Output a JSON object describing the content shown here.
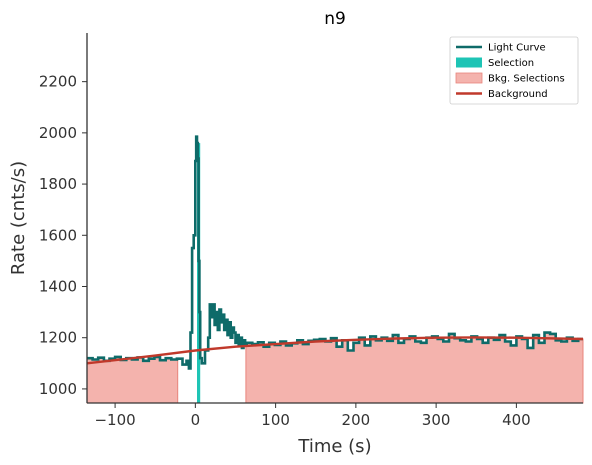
{
  "chart_data": {
    "type": "line",
    "title": "n9",
    "xlabel": "Time (s)",
    "ylabel": "Rate (cnts/s)",
    "xlim": [
      -135,
      483
    ],
    "ylim": [
      945,
      2390
    ],
    "x_ticks": [
      -100,
      0,
      100,
      200,
      300,
      400
    ],
    "y_ticks": [
      1000,
      1200,
      1400,
      1600,
      1800,
      2000,
      2200
    ],
    "x_tick_labels": [
      "−100",
      "0",
      "100",
      "200",
      "300",
      "400"
    ],
    "y_tick_labels": [
      "1000",
      "1200",
      "1400",
      "1600",
      "1800",
      "2000",
      "2200"
    ],
    "legend": {
      "position": "top-right",
      "entries": [
        {
          "label": "Light Curve",
          "kind": "line",
          "color": "#0e6b69"
        },
        {
          "label": "Selection",
          "kind": "patch",
          "color": "#1ec4b5"
        },
        {
          "label": "Bkg. Selections",
          "kind": "patch",
          "color": "#f4b3ad"
        },
        {
          "label": "Background",
          "kind": "line",
          "color": "#c0392b"
        }
      ]
    },
    "colors": {
      "light_curve": "#0e6b69",
      "selection": "#1ec4b5",
      "bkg_selection": "#f4b3ad",
      "bkg_selection_edge": "#e8857c",
      "background": "#c0392b"
    },
    "bkg_selections": [
      [
        -135,
        -22
      ],
      [
        63,
        483
      ]
    ],
    "selection": [
      2,
      6
    ],
    "background_model": {
      "x": [
        -135,
        -50,
        0,
        50,
        100,
        150,
        200,
        250,
        300,
        350,
        400,
        483
      ],
      "y": [
        1100,
        1130,
        1150,
        1165,
        1175,
        1185,
        1192,
        1197,
        1200,
        1201,
        1200,
        1195
      ]
    },
    "light_curve": {
      "x": [
        -135,
        -128,
        -121,
        -114,
        -107,
        -100,
        -93,
        -86,
        -79,
        -72,
        -65,
        -58,
        -51,
        -44,
        -37,
        -30,
        -23,
        -16,
        -11,
        -8,
        -6,
        -4,
        -2,
        0,
        1,
        2,
        3,
        4,
        5,
        6,
        8,
        12,
        16,
        18,
        20,
        22,
        24,
        26,
        28,
        30,
        32,
        34,
        36,
        38,
        40,
        42,
        44,
        46,
        48,
        50,
        52,
        54,
        56,
        58,
        60,
        62,
        64,
        71,
        78,
        85,
        92,
        99,
        106,
        113,
        120,
        127,
        134,
        141,
        148,
        155,
        162,
        169,
        176,
        183,
        190,
        197,
        204,
        211,
        218,
        225,
        232,
        239,
        246,
        253,
        260,
        267,
        274,
        281,
        288,
        295,
        302,
        309,
        316,
        323,
        330,
        337,
        344,
        351,
        358,
        365,
        372,
        379,
        386,
        393,
        400,
        407,
        414,
        421,
        428,
        435,
        442,
        449,
        456,
        463,
        470,
        477
      ],
      "y": [
        1120,
        1115,
        1122,
        1110,
        1118,
        1125,
        1113,
        1120,
        1115,
        1123,
        1110,
        1118,
        1125,
        1112,
        1120,
        1115,
        1118,
        1095,
        1110,
        1080,
        1220,
        1550,
        1600,
        1890,
        1985,
        1960,
        1900,
        1500,
        1300,
        1120,
        1100,
        1150,
        1200,
        1330,
        1280,
        1330,
        1250,
        1300,
        1230,
        1310,
        1260,
        1290,
        1230,
        1270,
        1210,
        1260,
        1200,
        1240,
        1220,
        1180,
        1210,
        1170,
        1200,
        1160,
        1190,
        1170,
        1180,
        1175,
        1182,
        1165,
        1180,
        1172,
        1185,
        1170,
        1178,
        1190,
        1175,
        1188,
        1192,
        1195,
        1185,
        1198,
        1165,
        1190,
        1150,
        1180,
        1200,
        1170,
        1205,
        1190,
        1200,
        1188,
        1210,
        1180,
        1195,
        1205,
        1185,
        1180,
        1200,
        1205,
        1195,
        1185,
        1215,
        1198,
        1190,
        1185,
        1205,
        1195,
        1180,
        1200,
        1192,
        1210,
        1185,
        1170,
        1205,
        1195,
        1160,
        1210,
        1180,
        1220,
        1215,
        1190,
        1185,
        1200,
        1188,
        1195
      ]
    }
  }
}
